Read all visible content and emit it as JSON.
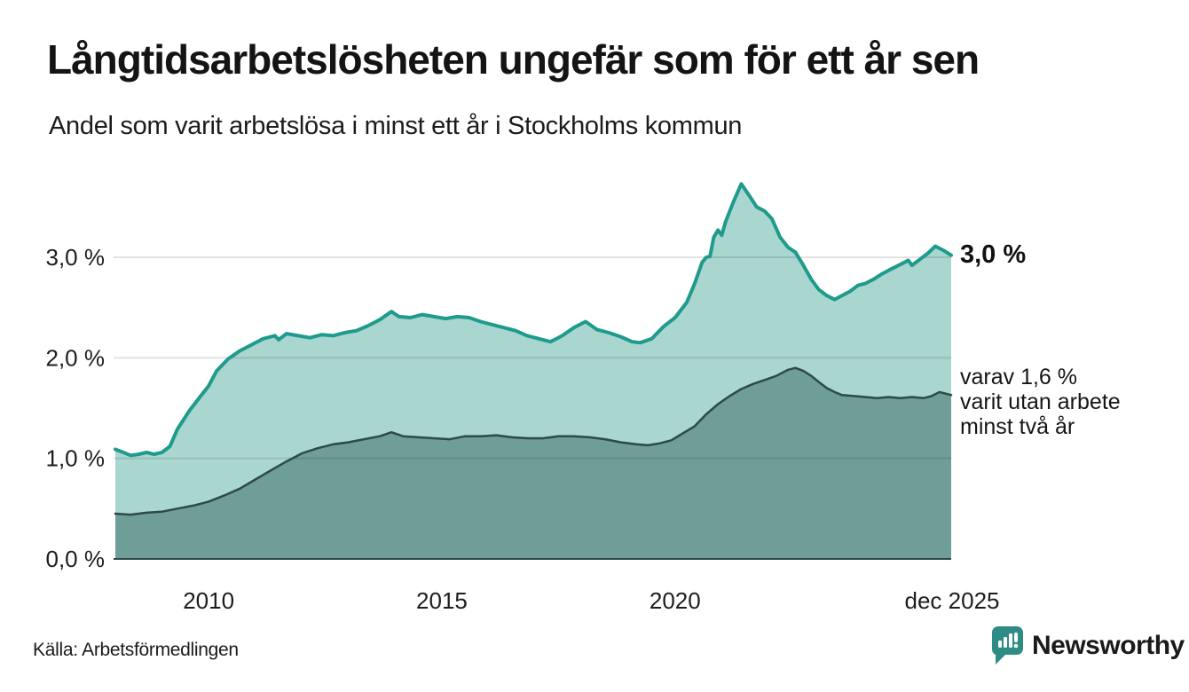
{
  "title": "Långtidsarbetslösheten ungefär som för ett år sen",
  "subtitle": "Andel som varit arbetslösa i minst ett år i Stockholms kommun",
  "source": "Källa: Arbetsförmedlingen",
  "brand": {
    "name": "Newsworthy",
    "color": "#2f8c85"
  },
  "annotations": {
    "latest_total": "3,0 %",
    "breakdown_line1": "varav 1,6 %",
    "breakdown_line2": "varit utan arbete",
    "breakdown_line3": "minst två år"
  },
  "colors": {
    "upper_line": "#1e9b8c",
    "upper_fill": "#a9d6cf",
    "lower_line": "#2d4a46",
    "lower_fill": "#6f9d98",
    "baseline": "#2b4743",
    "gridline": "rgba(0,0,0,0.11)",
    "text": "#1a1a1a"
  },
  "chart_data": {
    "type": "area",
    "title": "Långtidsarbetslösheten ungefär som för ett år sen",
    "subtitle": "Andel som varit arbetslösa i minst ett år i Stockholms kommun",
    "unit": "%",
    "grid": "horizontal",
    "legend": "none",
    "x_axis": {
      "range": [
        2008.0,
        2025.92
      ],
      "ticks": [
        {
          "label": "2010",
          "year": 2010
        },
        {
          "label": "2015",
          "year": 2015
        },
        {
          "label": "2020",
          "year": 2020
        },
        {
          "label": "dec 2025",
          "year": 2025.92
        }
      ]
    },
    "y_axis": {
      "range": [
        0,
        3.75
      ],
      "ticks": [
        {
          "label": "0,0 %",
          "value": 0
        },
        {
          "label": "1,0 %",
          "value": 1
        },
        {
          "label": "2,0 %",
          "value": 2
        },
        {
          "label": "3,0 %",
          "value": 3
        }
      ]
    },
    "series": [
      {
        "name": "Andel arbetslösa minst ett år",
        "latest_label": "3,0 %",
        "latest_value": 3.0,
        "points": [
          [
            2008.0,
            1.09
          ],
          [
            2008.17,
            1.06
          ],
          [
            2008.33,
            1.03
          ],
          [
            2008.5,
            1.04
          ],
          [
            2008.67,
            1.06
          ],
          [
            2008.83,
            1.04
          ],
          [
            2009.0,
            1.06
          ],
          [
            2009.17,
            1.12
          ],
          [
            2009.33,
            1.29
          ],
          [
            2009.58,
            1.47
          ],
          [
            2009.83,
            1.62
          ],
          [
            2010.0,
            1.72
          ],
          [
            2010.17,
            1.87
          ],
          [
            2010.42,
            1.99
          ],
          [
            2010.67,
            2.07
          ],
          [
            2010.92,
            2.13
          ],
          [
            2011.17,
            2.19
          ],
          [
            2011.42,
            2.22
          ],
          [
            2011.5,
            2.18
          ],
          [
            2011.67,
            2.24
          ],
          [
            2011.92,
            2.22
          ],
          [
            2012.17,
            2.2
          ],
          [
            2012.42,
            2.23
          ],
          [
            2012.67,
            2.22
          ],
          [
            2012.92,
            2.25
          ],
          [
            2013.17,
            2.27
          ],
          [
            2013.42,
            2.32
          ],
          [
            2013.67,
            2.38
          ],
          [
            2013.92,
            2.46
          ],
          [
            2014.08,
            2.41
          ],
          [
            2014.33,
            2.4
          ],
          [
            2014.58,
            2.43
          ],
          [
            2014.83,
            2.41
          ],
          [
            2015.08,
            2.39
          ],
          [
            2015.33,
            2.41
          ],
          [
            2015.58,
            2.4
          ],
          [
            2015.83,
            2.36
          ],
          [
            2016.08,
            2.33
          ],
          [
            2016.33,
            2.3
          ],
          [
            2016.58,
            2.27
          ],
          [
            2016.83,
            2.22
          ],
          [
            2017.08,
            2.19
          ],
          [
            2017.33,
            2.16
          ],
          [
            2017.58,
            2.22
          ],
          [
            2017.83,
            2.3
          ],
          [
            2018.08,
            2.36
          ],
          [
            2018.33,
            2.28
          ],
          [
            2018.58,
            2.25
          ],
          [
            2018.83,
            2.21
          ],
          [
            2019.08,
            2.16
          ],
          [
            2019.25,
            2.15
          ],
          [
            2019.5,
            2.19
          ],
          [
            2019.75,
            2.31
          ],
          [
            2020.0,
            2.4
          ],
          [
            2020.25,
            2.55
          ],
          [
            2020.42,
            2.74
          ],
          [
            2020.58,
            2.95
          ],
          [
            2020.67,
            3.0
          ],
          [
            2020.75,
            3.01
          ],
          [
            2020.83,
            3.2
          ],
          [
            2020.92,
            3.27
          ],
          [
            2021.0,
            3.22
          ],
          [
            2021.08,
            3.35
          ],
          [
            2021.25,
            3.55
          ],
          [
            2021.42,
            3.73
          ],
          [
            2021.58,
            3.62
          ],
          [
            2021.75,
            3.5
          ],
          [
            2021.92,
            3.46
          ],
          [
            2022.08,
            3.38
          ],
          [
            2022.25,
            3.2
          ],
          [
            2022.42,
            3.1
          ],
          [
            2022.58,
            3.05
          ],
          [
            2022.75,
            2.92
          ],
          [
            2022.92,
            2.78
          ],
          [
            2023.08,
            2.68
          ],
          [
            2023.25,
            2.62
          ],
          [
            2023.42,
            2.58
          ],
          [
            2023.58,
            2.62
          ],
          [
            2023.75,
            2.66
          ],
          [
            2023.92,
            2.72
          ],
          [
            2024.08,
            2.74
          ],
          [
            2024.25,
            2.78
          ],
          [
            2024.42,
            2.83
          ],
          [
            2024.58,
            2.87
          ],
          [
            2024.75,
            2.91
          ],
          [
            2024.92,
            2.95
          ],
          [
            2025.0,
            2.97
          ],
          [
            2025.08,
            2.92
          ],
          [
            2025.25,
            2.98
          ],
          [
            2025.42,
            3.04
          ],
          [
            2025.58,
            3.11
          ],
          [
            2025.75,
            3.07
          ],
          [
            2025.92,
            3.02
          ]
        ]
      },
      {
        "name": "Varav varit utan arbete minst två år",
        "latest_label": "varav 1,6 %",
        "latest_value": 1.6,
        "points": [
          [
            2008.0,
            0.45
          ],
          [
            2008.33,
            0.44
          ],
          [
            2008.67,
            0.46
          ],
          [
            2009.0,
            0.47
          ],
          [
            2009.33,
            0.5
          ],
          [
            2009.67,
            0.53
          ],
          [
            2010.0,
            0.57
          ],
          [
            2010.33,
            0.63
          ],
          [
            2010.67,
            0.7
          ],
          [
            2011.0,
            0.79
          ],
          [
            2011.33,
            0.88
          ],
          [
            2011.67,
            0.97
          ],
          [
            2012.0,
            1.05
          ],
          [
            2012.33,
            1.1
          ],
          [
            2012.67,
            1.14
          ],
          [
            2013.0,
            1.16
          ],
          [
            2013.33,
            1.19
          ],
          [
            2013.67,
            1.22
          ],
          [
            2013.92,
            1.26
          ],
          [
            2014.17,
            1.22
          ],
          [
            2014.5,
            1.21
          ],
          [
            2014.83,
            1.2
          ],
          [
            2015.17,
            1.19
          ],
          [
            2015.5,
            1.22
          ],
          [
            2015.83,
            1.22
          ],
          [
            2016.17,
            1.23
          ],
          [
            2016.5,
            1.21
          ],
          [
            2016.83,
            1.2
          ],
          [
            2017.17,
            1.2
          ],
          [
            2017.5,
            1.22
          ],
          [
            2017.83,
            1.22
          ],
          [
            2018.17,
            1.21
          ],
          [
            2018.5,
            1.19
          ],
          [
            2018.83,
            1.16
          ],
          [
            2019.17,
            1.14
          ],
          [
            2019.42,
            1.13
          ],
          [
            2019.67,
            1.15
          ],
          [
            2019.92,
            1.18
          ],
          [
            2020.17,
            1.25
          ],
          [
            2020.42,
            1.32
          ],
          [
            2020.67,
            1.44
          ],
          [
            2020.92,
            1.54
          ],
          [
            2021.17,
            1.62
          ],
          [
            2021.42,
            1.69
          ],
          [
            2021.67,
            1.74
          ],
          [
            2021.92,
            1.78
          ],
          [
            2022.17,
            1.82
          ],
          [
            2022.42,
            1.88
          ],
          [
            2022.58,
            1.9
          ],
          [
            2022.75,
            1.87
          ],
          [
            2022.92,
            1.82
          ],
          [
            2023.08,
            1.76
          ],
          [
            2023.25,
            1.7
          ],
          [
            2023.42,
            1.66
          ],
          [
            2023.58,
            1.63
          ],
          [
            2023.83,
            1.62
          ],
          [
            2024.08,
            1.61
          ],
          [
            2024.33,
            1.6
          ],
          [
            2024.58,
            1.61
          ],
          [
            2024.83,
            1.6
          ],
          [
            2025.08,
            1.61
          ],
          [
            2025.33,
            1.6
          ],
          [
            2025.5,
            1.62
          ],
          [
            2025.67,
            1.66
          ],
          [
            2025.83,
            1.64
          ],
          [
            2025.92,
            1.63
          ]
        ]
      }
    ]
  }
}
